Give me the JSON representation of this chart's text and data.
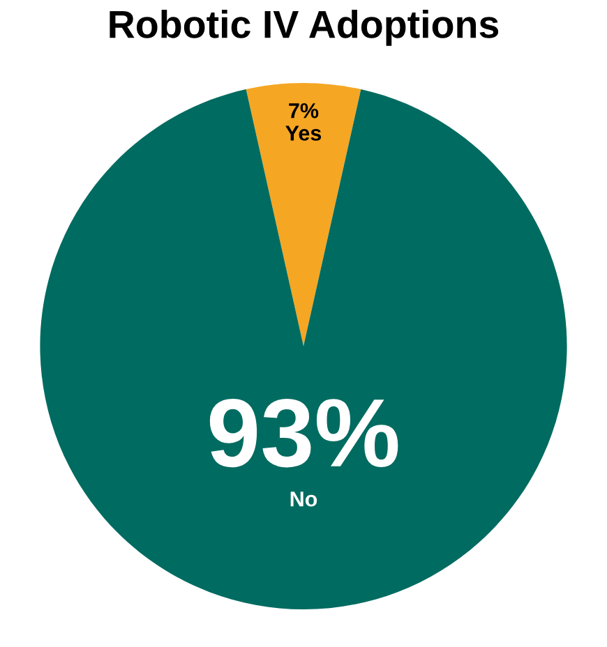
{
  "chart_data": {
    "type": "pie",
    "title": "Robotic IV Adoptions",
    "categories": [
      "Yes",
      "No"
    ],
    "values": [
      7,
      93
    ],
    "colors": [
      "#f5a623",
      "#006b60"
    ],
    "value_labels": [
      "7%",
      "93%"
    ],
    "legend": false
  }
}
